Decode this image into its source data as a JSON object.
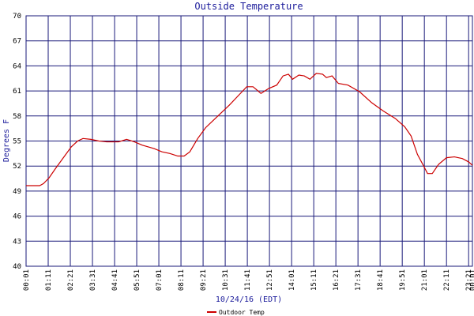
{
  "chart_data": {
    "type": "line",
    "title": "Outside Temperature",
    "x_label": "10/24/16 (EDT)",
    "y_label": "Degrees F",
    "xlim": [
      1,
      1413
    ],
    "ylim": [
      40,
      70
    ],
    "yticks": [
      40,
      43,
      46,
      49,
      52,
      55,
      58,
      61,
      64,
      67,
      70
    ],
    "xticks": [
      {
        "value": 1,
        "label": "00:01"
      },
      {
        "value": 71,
        "label": "01:11"
      },
      {
        "value": 141,
        "label": "02:21"
      },
      {
        "value": 211,
        "label": "03:31"
      },
      {
        "value": 281,
        "label": "04:41"
      },
      {
        "value": 351,
        "label": "05:51"
      },
      {
        "value": 421,
        "label": "07:01"
      },
      {
        "value": 491,
        "label": "08:11"
      },
      {
        "value": 561,
        "label": "09:21"
      },
      {
        "value": 631,
        "label": "10:31"
      },
      {
        "value": 701,
        "label": "11:41"
      },
      {
        "value": 771,
        "label": "12:51"
      },
      {
        "value": 841,
        "label": "14:01"
      },
      {
        "value": 911,
        "label": "15:11"
      },
      {
        "value": 981,
        "label": "16:21"
      },
      {
        "value": 1051,
        "label": "17:31"
      },
      {
        "value": 1121,
        "label": "18:41"
      },
      {
        "value": 1191,
        "label": "19:51"
      },
      {
        "value": 1261,
        "label": "21:01"
      },
      {
        "value": 1331,
        "label": "22:11"
      },
      {
        "value": 1401,
        "label": "23:21"
      },
      {
        "value": 1413,
        "label": "00:01"
      }
    ],
    "grid": true,
    "x": [
      1,
      44,
      56,
      74,
      94,
      119,
      144,
      164,
      181,
      206,
      231,
      256,
      294,
      319,
      344,
      369,
      406,
      431,
      456,
      481,
      501,
      519,
      544,
      569,
      594,
      619,
      644,
      669,
      699,
      719,
      744,
      769,
      794,
      814,
      831,
      844,
      864,
      881,
      899,
      919,
      939,
      951,
      969,
      989,
      1019,
      1056,
      1094,
      1131,
      1169,
      1199,
      1219,
      1239,
      1256,
      1271,
      1286,
      1306,
      1331,
      1356,
      1381,
      1401,
      1413
    ],
    "series": [
      {
        "name": "Outdoor Temp",
        "color": "#cc0000",
        "values": [
          49.65,
          49.65,
          49.9,
          50.6,
          51.7,
          53.0,
          54.3,
          55.0,
          55.3,
          55.2,
          55.0,
          54.9,
          54.9,
          55.2,
          54.9,
          54.5,
          54.1,
          53.7,
          53.5,
          53.2,
          53.2,
          53.7,
          55.3,
          56.6,
          57.5,
          58.4,
          59.3,
          60.3,
          61.5,
          61.5,
          60.7,
          61.3,
          61.7,
          62.8,
          63.0,
          62.4,
          62.9,
          62.8,
          62.4,
          63.1,
          63.0,
          62.6,
          62.8,
          61.9,
          61.7,
          60.9,
          59.6,
          58.6,
          57.7,
          56.7,
          55.6,
          53.4,
          52.2,
          51.1,
          51.1,
          52.2,
          53.0,
          53.1,
          52.9,
          52.5,
          52.1
        ]
      }
    ]
  }
}
